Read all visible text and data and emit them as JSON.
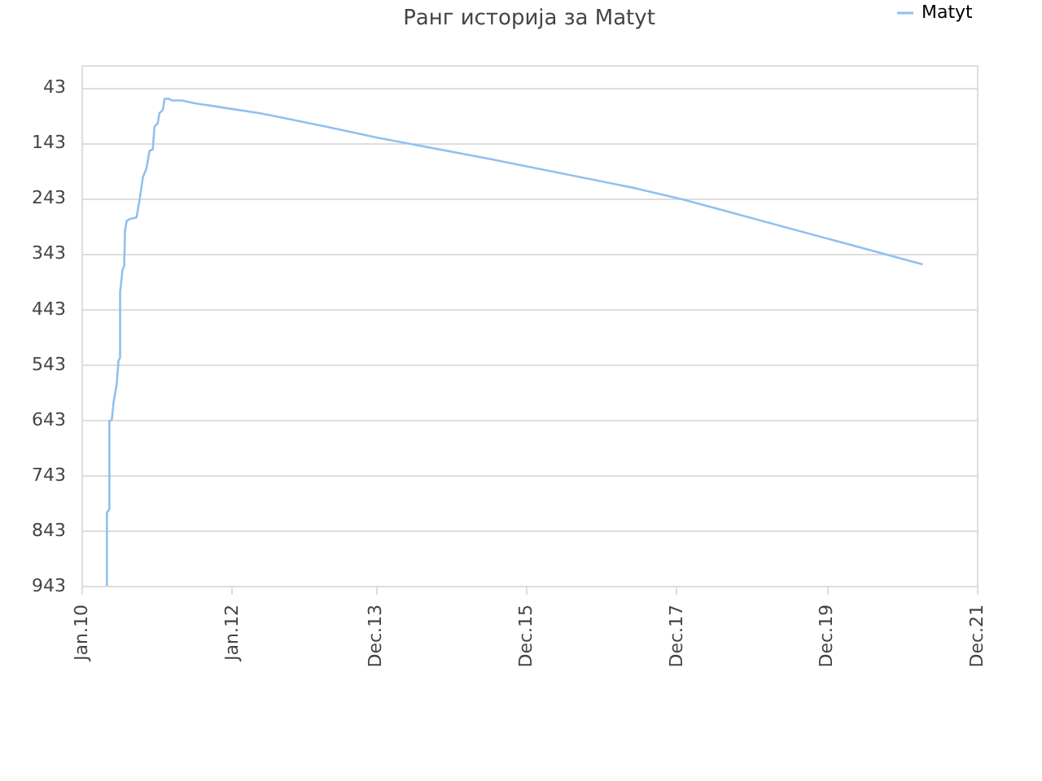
{
  "chart_data": {
    "type": "line",
    "title": "Ранг историја за Matyt",
    "x": [
      "2010-05-05",
      "2010-05-05",
      "2010-05-17",
      "2010-05-17",
      "2010-05-29",
      "2010-06-06",
      "2010-06-22",
      "2010-06-30",
      "2010-07-08",
      "2010-07-08",
      "2010-07-20",
      "2010-07-28",
      "2010-08-01",
      "2010-08-09",
      "2010-08-25",
      "2010-09-26",
      "2010-10-12",
      "2010-10-27",
      "2010-11-13",
      "2010-11-28",
      "2010-12-14",
      "2010-12-22",
      "2011-01-07",
      "2011-01-15",
      "2011-02-01",
      "2011-02-09",
      "2011-03-02",
      "2011-03-18",
      "2011-05-04",
      "2011-07-07",
      "2011-12-13",
      "2012-05-19",
      "2012-08-07",
      "2013-04-01",
      "2013-12-10",
      "2015-06-01",
      "2017-05-13",
      "2018-01-07",
      "2021-03-13"
    ],
    "series": [
      {
        "name": "Matyt",
        "color": "#90c0f0",
        "values": [
          943,
          811,
          805,
          646,
          643,
          613,
          578,
          537,
          531,
          413,
          372,
          366,
          302,
          284,
          281,
          278,
          243,
          205,
          190,
          158,
          155,
          114,
          108,
          90,
          84,
          64,
          64,
          67,
          67,
          72,
          81,
          90,
          96,
          114,
          134,
          172,
          225,
          246,
          363
        ]
      }
    ],
    "xlim": [
      "2010-01-01",
      "2021-12-01"
    ],
    "xticks": [
      {
        "value": "2010-01-01",
        "label": "Jan.10"
      },
      {
        "value": "2012-01-01",
        "label": "Jan.12"
      },
      {
        "value": "2013-12-01",
        "label": "Dec.13"
      },
      {
        "value": "2015-12-01",
        "label": "Dec.15"
      },
      {
        "value": "2017-12-01",
        "label": "Dec.17"
      },
      {
        "value": "2019-12-01",
        "label": "Dec.19"
      },
      {
        "value": "2021-12-01",
        "label": "Dec.21"
      }
    ],
    "ylim": [
      943,
      3
    ],
    "yticks": [
      43,
      143,
      243,
      343,
      443,
      543,
      643,
      743,
      843,
      943
    ],
    "grid": "y",
    "legend": "top right",
    "marker": "none",
    "line_style": "solid"
  }
}
